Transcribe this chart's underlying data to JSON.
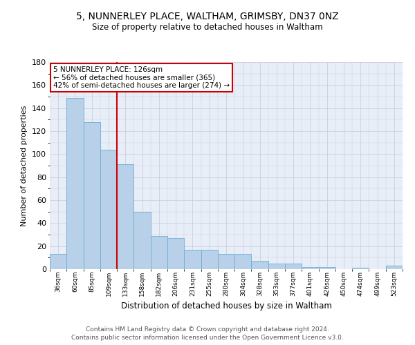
{
  "title_line1": "5, NUNNERLEY PLACE, WALTHAM, GRIMSBY, DN37 0NZ",
  "title_line2": "Size of property relative to detached houses in Waltham",
  "xlabel": "Distribution of detached houses by size in Waltham",
  "ylabel": "Number of detached properties",
  "categories": [
    "36sqm",
    "60sqm",
    "85sqm",
    "109sqm",
    "133sqm",
    "158sqm",
    "182sqm",
    "206sqm",
    "231sqm",
    "255sqm",
    "280sqm",
    "304sqm",
    "328sqm",
    "353sqm",
    "377sqm",
    "401sqm",
    "426sqm",
    "450sqm",
    "474sqm",
    "499sqm",
    "523sqm"
  ],
  "values": [
    13,
    149,
    128,
    104,
    91,
    50,
    29,
    27,
    17,
    17,
    13,
    13,
    7,
    5,
    5,
    2,
    2,
    0,
    1,
    0,
    3
  ],
  "bar_color": "#b8d0e8",
  "bar_edge_color": "#6baed6",
  "vline_color": "#cc0000",
  "annotation_text": "5 NUNNERLEY PLACE: 126sqm\n← 56% of detached houses are smaller (365)\n42% of semi-detached houses are larger (274) →",
  "annotation_box_color": "#ffffff",
  "annotation_box_edge_color": "#cc0000",
  "ylim": [
    0,
    180
  ],
  "yticks": [
    0,
    20,
    40,
    60,
    80,
    100,
    120,
    140,
    160,
    180
  ],
  "footer_line1": "Contains HM Land Registry data © Crown copyright and database right 2024.",
  "footer_line2": "Contains public sector information licensed under the Open Government Licence v3.0.",
  "background_color": "#ffffff",
  "plot_bg_color": "#e8eef8",
  "grid_color": "#c8c8d8"
}
